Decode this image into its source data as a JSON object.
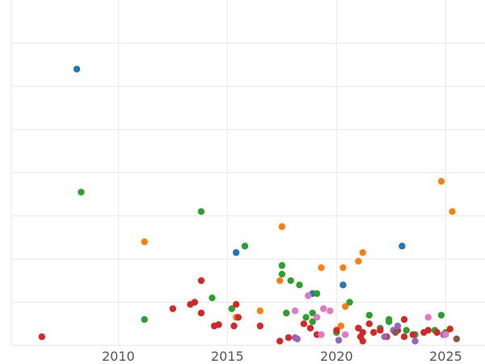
{
  "chart_data": {
    "type": "scatter",
    "title": "",
    "xlabel": "",
    "ylabel": "",
    "xlim": [
      2005.1,
      2026.8
    ],
    "ylim": [
      0,
      8.0
    ],
    "x_ticks": [
      2010,
      2015,
      2020,
      2025
    ],
    "x_tick_labels": [
      "2010",
      "2015",
      "2020",
      "2025"
    ],
    "y_gridlines": [
      0,
      1,
      2,
      3,
      4,
      5,
      6,
      7
    ],
    "grid": true,
    "legend": "none",
    "series": [
      {
        "color": "#1f77b4",
        "points": [
          [
            2008.1,
            6.4
          ],
          [
            2015.4,
            2.15
          ],
          [
            2018.9,
            1.2
          ],
          [
            2020.3,
            1.4
          ],
          [
            2023.0,
            2.3
          ]
        ]
      },
      {
        "color": "#ff7f0e",
        "points": [
          [
            2011.2,
            2.4
          ],
          [
            2015.4,
            0.65
          ],
          [
            2016.5,
            0.8
          ],
          [
            2017.4,
            1.5
          ],
          [
            2017.5,
            2.75
          ],
          [
            2019.3,
            1.8
          ],
          [
            2020.2,
            0.45
          ],
          [
            2020.3,
            1.8
          ],
          [
            2020.4,
            0.9
          ],
          [
            2021.0,
            1.95
          ],
          [
            2021.2,
            2.15
          ],
          [
            2024.8,
            3.8
          ],
          [
            2025.3,
            3.1
          ]
        ]
      },
      {
        "color": "#2ca02c",
        "points": [
          [
            2008.3,
            3.55
          ],
          [
            2011.2,
            0.6
          ],
          [
            2013.8,
            3.1
          ],
          [
            2014.3,
            1.1
          ],
          [
            2015.2,
            0.85
          ],
          [
            2015.8,
            2.3
          ],
          [
            2017.5,
            1.65
          ],
          [
            2017.5,
            1.85
          ],
          [
            2017.7,
            0.75
          ],
          [
            2017.9,
            1.5
          ],
          [
            2018.3,
            1.4
          ],
          [
            2018.6,
            0.65
          ],
          [
            2018.9,
            0.75
          ],
          [
            2018.9,
            0.55
          ],
          [
            2019.1,
            1.2
          ],
          [
            2020.0,
            0.3
          ],
          [
            2020.6,
            1.0
          ],
          [
            2021.5,
            0.7
          ],
          [
            2022.0,
            0.4
          ],
          [
            2022.4,
            0.6
          ],
          [
            2022.4,
            0.55
          ],
          [
            2023.2,
            0.35
          ],
          [
            2023.6,
            0.25
          ],
          [
            2024.5,
            0.35
          ],
          [
            2024.8,
            0.7
          ],
          [
            2025.0,
            0.3
          ]
        ]
      },
      {
        "color": "#d62728",
        "points": [
          [
            2006.5,
            0.2
          ],
          [
            2012.5,
            0.85
          ],
          [
            2013.3,
            0.95
          ],
          [
            2013.5,
            1.0
          ],
          [
            2013.8,
            1.5
          ],
          [
            2013.8,
            0.75
          ],
          [
            2014.4,
            0.45
          ],
          [
            2014.6,
            0.48
          ],
          [
            2015.3,
            0.45
          ],
          [
            2015.4,
            0.95
          ],
          [
            2015.5,
            0.65
          ],
          [
            2016.5,
            0.45
          ],
          [
            2017.4,
            0.1
          ],
          [
            2017.8,
            0.18
          ],
          [
            2018.5,
            0.5
          ],
          [
            2018.8,
            0.4
          ],
          [
            2019.1,
            0.25
          ],
          [
            2020.0,
            0.35
          ],
          [
            2021.0,
            0.4
          ],
          [
            2021.1,
            0.2
          ],
          [
            2021.2,
            0.3
          ],
          [
            2021.2,
            0.1
          ],
          [
            2021.5,
            0.5
          ],
          [
            2021.7,
            0.3
          ],
          [
            2022.0,
            0.35
          ],
          [
            2022.3,
            0.2
          ],
          [
            2022.8,
            0.35
          ],
          [
            2023.1,
            0.2
          ],
          [
            2023.1,
            0.6
          ],
          [
            2023.5,
            0.25
          ],
          [
            2024.0,
            0.3
          ],
          [
            2024.2,
            0.35
          ],
          [
            2024.6,
            0.3
          ],
          [
            2024.9,
            0.25
          ],
          [
            2025.2,
            0.38
          ]
        ]
      },
      {
        "color": "#9467bd",
        "points": [
          [
            2018.1,
            0.18
          ],
          [
            2018.2,
            0.15
          ],
          [
            2020.1,
            0.12
          ],
          [
            2022.2,
            0.2
          ],
          [
            2022.6,
            0.35
          ],
          [
            2022.8,
            0.45
          ],
          [
            2023.6,
            0.1
          ],
          [
            2024.9,
            0.25
          ]
        ]
      },
      {
        "color": "#8c564b",
        "points": [
          [
            2022.7,
            0.3
          ],
          [
            2025.5,
            0.15
          ]
        ]
      },
      {
        "color": "#e377c2",
        "points": [
          [
            2018.1,
            0.8
          ],
          [
            2018.7,
            1.15
          ],
          [
            2019.1,
            0.65
          ],
          [
            2019.3,
            0.25
          ],
          [
            2019.4,
            0.85
          ],
          [
            2019.7,
            0.8
          ],
          [
            2020.4,
            0.25
          ],
          [
            2024.2,
            0.65
          ],
          [
            2025.0,
            0.25
          ]
        ]
      }
    ]
  }
}
